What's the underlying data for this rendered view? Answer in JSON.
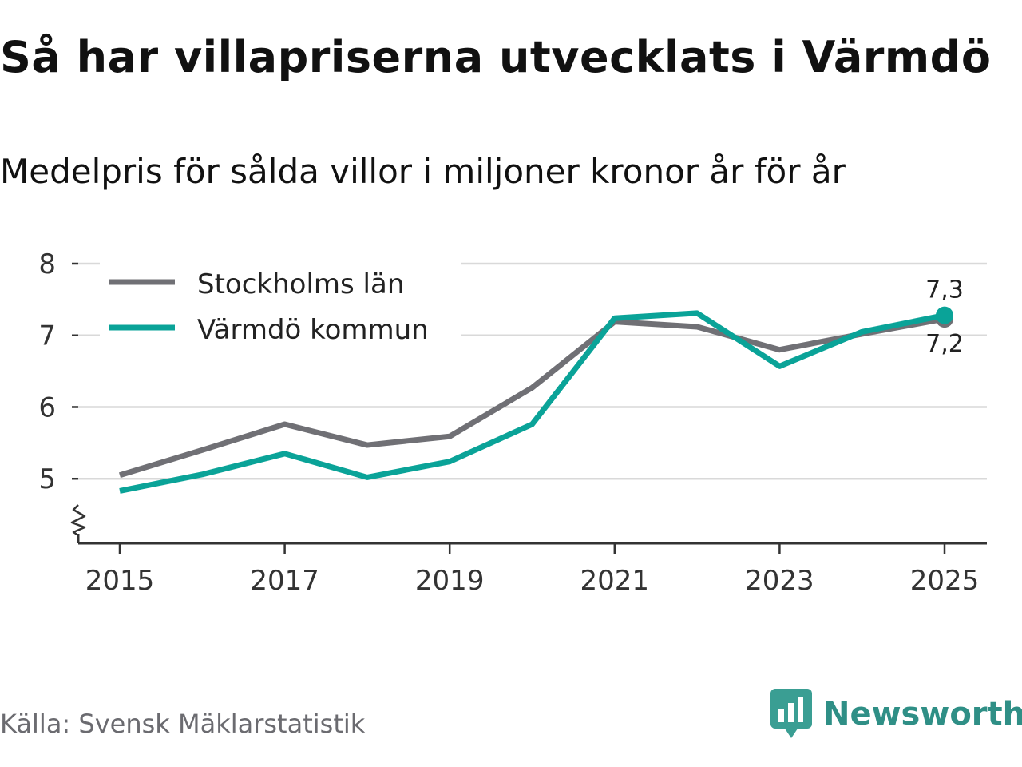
{
  "header": {
    "title": "Så har villapriserna utvecklats i Värmdö",
    "subtitle": "Medelpris för sålda villor i miljoner kronor år för år"
  },
  "footer": {
    "source": "Källa: Svensk Mäklarstatistik",
    "brand": "Newsworthy"
  },
  "chart_data": {
    "type": "line",
    "title": "Så har villapriserna utvecklats i Värmdö",
    "subtitle": "Medelpris för sålda villor i miljoner kronor år för år",
    "xlabel": "",
    "ylabel": "",
    "x": [
      2015,
      2016,
      2017,
      2018,
      2019,
      2020,
      2021,
      2022,
      2023,
      2024,
      2025
    ],
    "x_ticks": [
      "2015",
      "2017",
      "2019",
      "2021",
      "2023",
      "2025"
    ],
    "y_ticks": [
      "5",
      "6",
      "7",
      "8"
    ],
    "ylim": [
      4.1,
      8
    ],
    "xlim": [
      2014.5,
      2025.5
    ],
    "grid": true,
    "axis_break": true,
    "legend_position": "top-left",
    "series": [
      {
        "name": "Stockholms län",
        "color": "#707075",
        "values": [
          5.05,
          5.4,
          5.76,
          5.47,
          5.59,
          6.27,
          7.19,
          7.12,
          6.8,
          7.02,
          7.23
        ],
        "end_label": "7,2"
      },
      {
        "name": "Värmdö kommun",
        "color": "#0aa398",
        "values": [
          4.83,
          5.06,
          5.35,
          5.02,
          5.24,
          5.76,
          7.24,
          7.31,
          6.57,
          7.05,
          7.28
        ],
        "end_label": "7,3"
      }
    ]
  }
}
